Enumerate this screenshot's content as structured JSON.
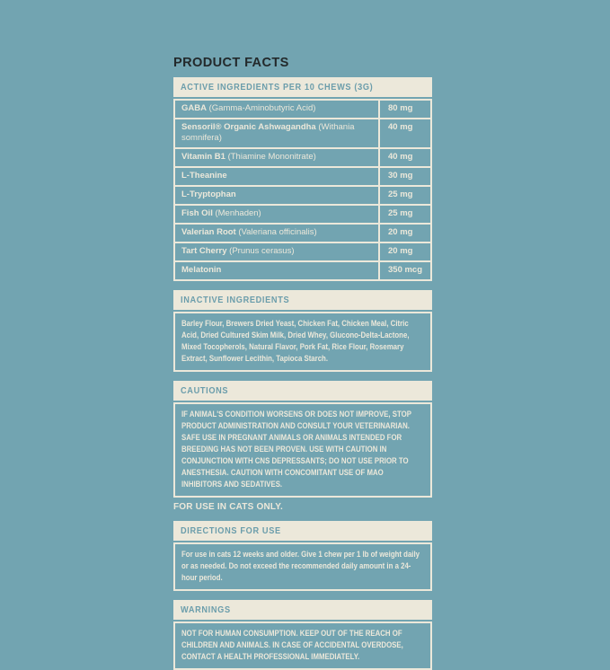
{
  "page": {
    "title": "PRODUCT FACTS"
  },
  "colors": {
    "background_teal": "#72a4b1",
    "cream": "#ece8da",
    "title_dark": "#23292b",
    "header_teal_text": "#6b9dab"
  },
  "active_ingredients": {
    "header": "ACTIVE INGREDIENTS PER 10 CHEWS (3G)",
    "rows": [
      {
        "name": "GABA",
        "detail": " (Gamma-Aminobutyric Acid)",
        "amount": "80 mg"
      },
      {
        "name": "Sensoril® Organic Ashwagandha",
        "detail": " (Withania somnifera)",
        "amount": "40 mg"
      },
      {
        "name": "Vitamin B1",
        "detail": " (Thiamine Mononitrate)",
        "amount": "40 mg"
      },
      {
        "name": "L-Theanine",
        "detail": "",
        "amount": "30 mg"
      },
      {
        "name": "L-Tryptophan",
        "detail": "",
        "amount": "25 mg"
      },
      {
        "name": "Fish Oil",
        "detail": " (Menhaden)",
        "amount": "25 mg"
      },
      {
        "name": "Valerian Root",
        "detail": " (Valeriana officinalis)",
        "amount": "20 mg"
      },
      {
        "name": "Tart Cherry",
        "detail": " (Prunus cerasus)",
        "amount": "20 mg"
      },
      {
        "name": "Melatonin",
        "detail": "",
        "amount": "350 mcg"
      }
    ]
  },
  "inactive_ingredients": {
    "header": "INACTIVE INGREDIENTS",
    "body": "Barley Flour, Brewers Dried Yeast, Chicken Fat, Chicken Meal, Citric Acid, Dried Cultured Skim Milk, Dried Whey, Glucono-Delta-Lactone, Mixed Tocopherols, Natural Flavor, Pork Fat, Rice Flour, Rosemary Extract, Sunflower Lecithin, Tapioca Starch."
  },
  "cautions": {
    "header": "CAUTIONS",
    "body": "IF ANIMAL'S CONDITION WORSENS OR DOES NOT IMPROVE, STOP PRODUCT ADMINISTRATION AND CONSULT YOUR VETERINARIAN. SAFE USE IN PREGNANT ANIMALS OR ANIMALS INTENDED FOR BREEDING HAS NOT BEEN PROVEN. USE WITH CAUTION IN CONJUNCTION WITH CNS DEPRESSANTS; DO NOT USE PRIOR TO ANESTHESIA. CAUTION WITH CONCOMITANT USE OF MAO INHIBITORS AND SEDATIVES.",
    "note": "FOR USE IN CATS ONLY."
  },
  "directions": {
    "header": "DIRECTIONS FOR USE",
    "body": "For use in cats 12 weeks and older. Give 1 chew per 1 lb of weight daily or as needed. Do not exceed the recommended daily amount in a 24-hour period."
  },
  "warnings": {
    "header": "WARNINGS",
    "body": "NOT FOR HUMAN CONSUMPTION. KEEP OUT OF THE REACH OF CHILDREN AND ANIMALS. IN CASE OF ACCIDENTAL OVERDOSE, CONTACT A HEALTH PROFESSIONAL IMMEDIATELY."
  }
}
